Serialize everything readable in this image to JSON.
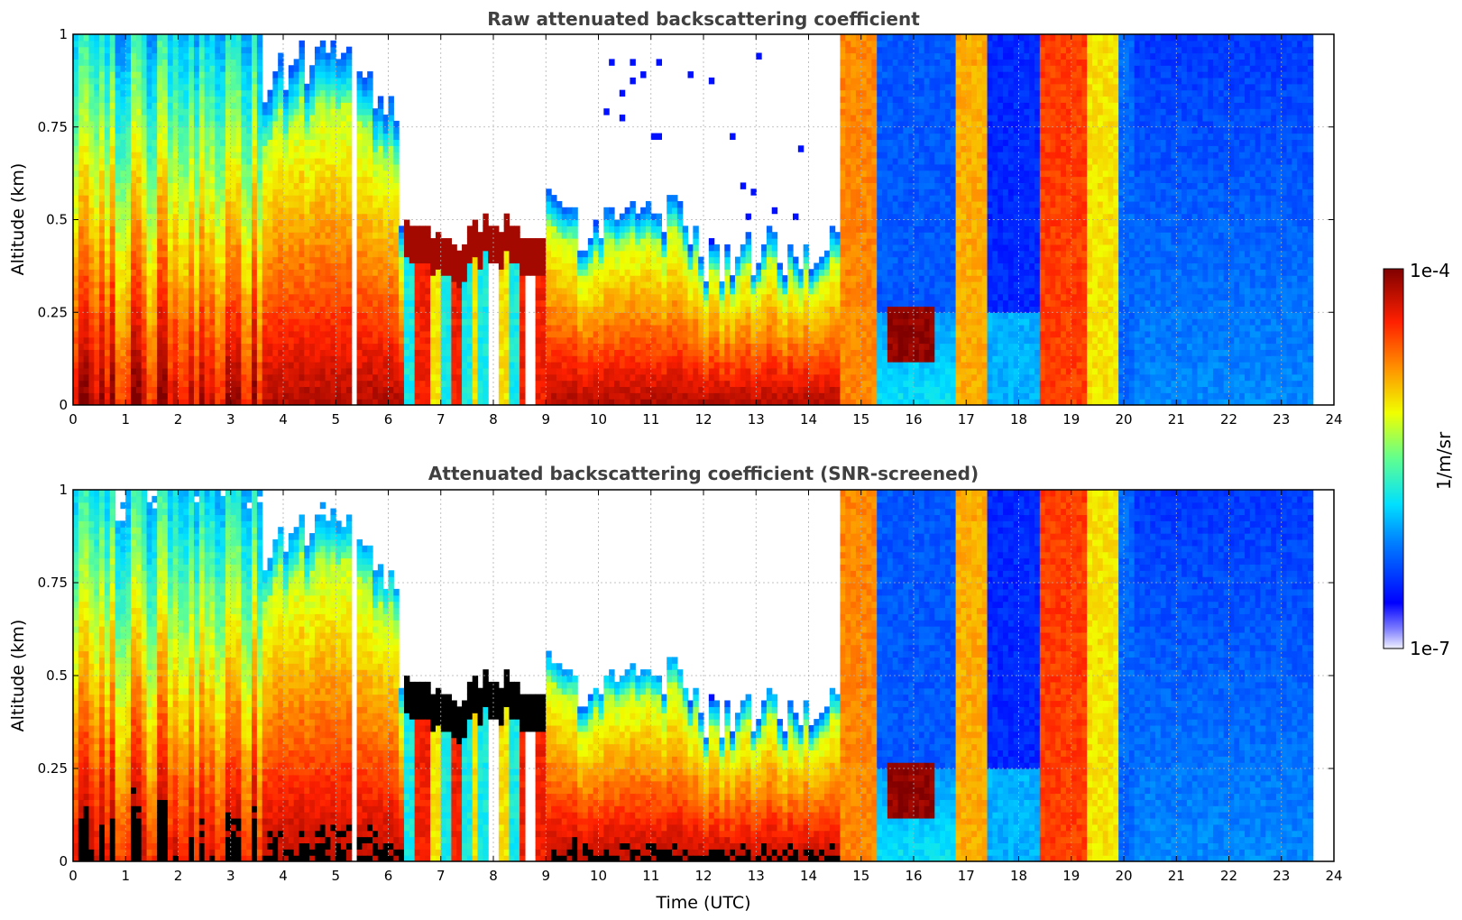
{
  "chart_data": [
    {
      "type": "heatmap",
      "title": "Raw attenuated backscattering coefficient",
      "ylabel": "Altitude (km)",
      "xlabel": "",
      "x_ticks": [
        "0",
        "1",
        "2",
        "3",
        "4",
        "5",
        "6",
        "7",
        "8",
        "9",
        "10",
        "11",
        "12",
        "13",
        "14",
        "15",
        "16",
        "17",
        "18",
        "19",
        "20",
        "21",
        "22",
        "23",
        "24"
      ],
      "y_ticks": [
        "0",
        "0.25",
        "0.5",
        "0.75",
        "1"
      ],
      "xlim": [
        0,
        24
      ],
      "ylim": [
        0,
        1
      ],
      "grid": true,
      "colormap": "jet",
      "screened": false,
      "observation_end_hour": 23.65,
      "regimes": [
        {
          "start": 0,
          "end": 3.6,
          "description": "strong low-level backscatter, high values near surface"
        },
        {
          "start": 3.6,
          "end": 6.2,
          "description": "variable layers with intermittent gaps"
        },
        {
          "start": 6.2,
          "end": 9.0,
          "description": "shallow boundary layer near 0.4-0.5 km"
        },
        {
          "start": 9.0,
          "end": 14.6,
          "description": "boundary layer with dense low-level backscatter"
        },
        {
          "start": 14.6,
          "end": 20.2,
          "description": "alternating bands of high and low backscatter through full column"
        },
        {
          "start": 20.2,
          "end": 23.65,
          "description": "low uniform backscatter"
        }
      ]
    },
    {
      "type": "heatmap",
      "title": "Attenuated backscattering coefficient (SNR-screened)",
      "ylabel": "Altitude (km)",
      "xlabel": "Time (UTC)",
      "x_ticks": [
        "0",
        "1",
        "2",
        "3",
        "4",
        "5",
        "6",
        "7",
        "8",
        "9",
        "10",
        "11",
        "12",
        "13",
        "14",
        "15",
        "16",
        "17",
        "18",
        "19",
        "20",
        "21",
        "22",
        "23",
        "24"
      ],
      "y_ticks": [
        "0",
        "0.25",
        "0.5",
        "0.75",
        "1"
      ],
      "xlim": [
        0,
        24
      ],
      "ylim": [
        0,
        1
      ],
      "grid": true,
      "colormap": "jet",
      "screened": true,
      "observation_end_hour": 23.65
    }
  ],
  "colorbar": {
    "label": "1/m/sr",
    "max_label": "1e-4",
    "min_label": "1e-7",
    "scale": "log",
    "range": [
      1e-07,
      0.0001
    ]
  },
  "colors": {
    "title": "#404040",
    "grid": "#b0b0b0",
    "background": "#ffffff"
  }
}
